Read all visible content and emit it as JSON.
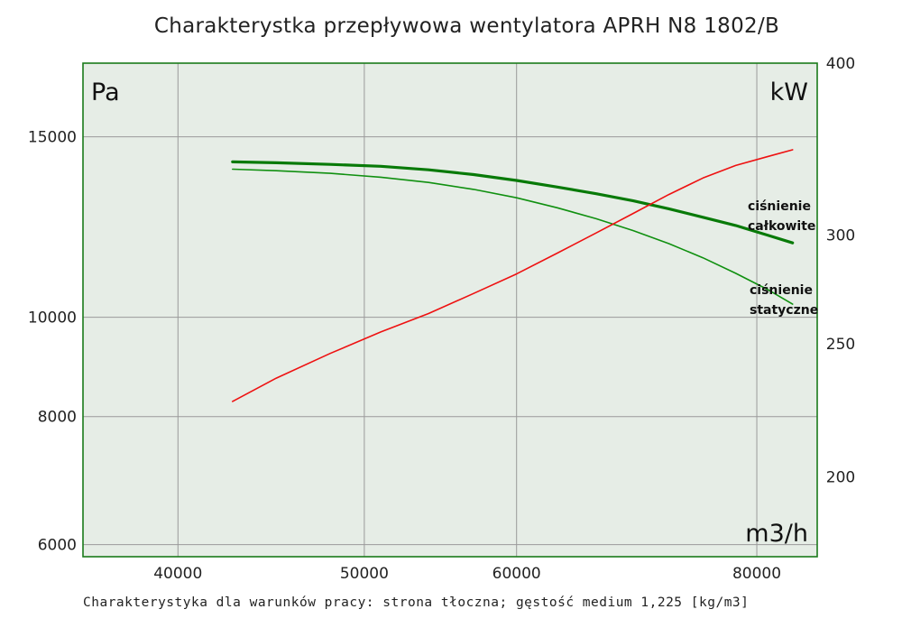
{
  "title": "Charakterystka przepływowa wentylatora APRH N8 1802/B",
  "subtitle": "Charakterystyka dla warunków pracy: strona tłoczna; gęstość medium 1,225 [kg/m3]",
  "colors": {
    "plot_bg": "#e6ede6",
    "frame": "#1a7a1a",
    "grid": "#9a9a9a",
    "total": "#087a08",
    "static": "#109010",
    "power": "#ee1111"
  },
  "chart_data": {
    "type": "line",
    "title": "Charakterystka przepływowa wentylatora APRH N8 1802/B",
    "x_scale": "log",
    "y_scale": "log",
    "xlim": [
      35700,
      86000
    ],
    "ylim": [
      5840,
      17700
    ],
    "y2lim": [
      175,
      400
    ],
    "x_unit": "m3/h",
    "y_unit": "Pa",
    "y2_unit": "kW",
    "x_ticks": [
      {
        "value": 40000,
        "label": "40000"
      },
      {
        "value": 50000,
        "label": "50000"
      },
      {
        "value": 60000,
        "label": "60000"
      },
      {
        "value": 80000,
        "label": "80000"
      }
    ],
    "y_ticks": [
      {
        "value": 6000,
        "label": "6000"
      },
      {
        "value": 8000,
        "label": "8000"
      },
      {
        "value": 10000,
        "label": "10000"
      },
      {
        "value": 15000,
        "label": "15000"
      }
    ],
    "y2_ticks": [
      {
        "value": 200,
        "label": "200"
      },
      {
        "value": 250,
        "label": "250"
      },
      {
        "value": 300,
        "label": "300"
      },
      {
        "value": 400,
        "label": "400"
      }
    ],
    "grid": true,
    "series": [
      {
        "name": "ciśnienie całkowite",
        "axis": "left",
        "x": [
          42700,
          45000,
          48000,
          51000,
          54000,
          57000,
          60000,
          63000,
          66000,
          69000,
          72000,
          75000,
          78000,
          81000,
          83500
        ],
        "y": [
          14180,
          14150,
          14100,
          14040,
          13930,
          13780,
          13600,
          13400,
          13200,
          12990,
          12760,
          12520,
          12290,
          12030,
          11820
        ]
      },
      {
        "name": "ciśnienie statyczne",
        "axis": "left",
        "x": [
          42700,
          45000,
          48000,
          51000,
          54000,
          57000,
          60000,
          63000,
          66000,
          69000,
          72000,
          75000,
          78000,
          81000,
          83500
        ],
        "y": [
          13950,
          13900,
          13820,
          13700,
          13540,
          13330,
          13080,
          12790,
          12480,
          12150,
          11800,
          11430,
          11040,
          10650,
          10300
        ]
      },
      {
        "name": "moc",
        "axis": "right",
        "x": [
          42700,
          45000,
          48000,
          51000,
          54000,
          57000,
          60000,
          63000,
          66000,
          69000,
          72000,
          75000,
          78000,
          81000,
          83500
        ],
        "y": [
          227,
          236,
          246,
          255,
          263,
          272,
          281,
          291,
          301,
          311,
          321,
          330,
          337,
          342,
          346
        ]
      }
    ]
  },
  "labels": {
    "total_line1": "ciśnienie",
    "total_line2": "całkowite",
    "static_line1": "ciśnienie",
    "static_line2": "statyczne"
  }
}
